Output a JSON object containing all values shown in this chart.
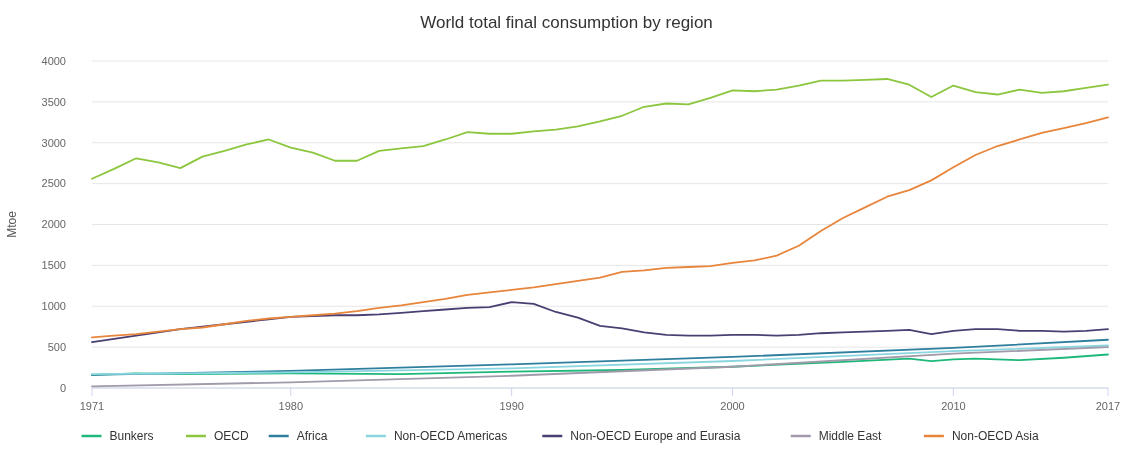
{
  "chart_data": {
    "type": "line",
    "title": "World total final consumption by region",
    "ylabel": "Mtoe",
    "xlim": [
      1971,
      2017
    ],
    "xticks": [
      1971,
      1980,
      1990,
      2000,
      2010,
      2017
    ],
    "ylim": [
      0,
      4000
    ],
    "yticks": [
      0,
      500,
      1000,
      1500,
      2000,
      2500,
      3000,
      3500,
      4000
    ],
    "grid": "y",
    "legend": "bottom",
    "marker": "none",
    "line_style": "solid",
    "series": [
      {
        "name": "Bunkers",
        "color": "#1db87a",
        "x": [
          1971,
          1973,
          1975,
          1980,
          1985,
          1990,
          1995,
          2000,
          2005,
          2008,
          2009,
          2010,
          2011,
          2013,
          2015,
          2017
        ],
        "values": [
          160,
          180,
          170,
          180,
          170,
          200,
          220,
          260,
          320,
          360,
          330,
          350,
          360,
          340,
          370,
          410
        ]
      },
      {
        "name": "OECD",
        "color": "#8cc63e",
        "x": [
          1971,
          1972,
          1973,
          1974,
          1975,
          1976,
          1977,
          1978,
          1979,
          1980,
          1981,
          1982,
          1983,
          1984,
          1985,
          1986,
          1987,
          1988,
          1989,
          1990,
          1991,
          1992,
          1993,
          1994,
          1995,
          1996,
          1997,
          1998,
          1999,
          2000,
          2001,
          2002,
          2003,
          2004,
          2005,
          2006,
          2007,
          2008,
          2009,
          2010,
          2011,
          2012,
          2013,
          2014,
          2015,
          2016,
          2017
        ],
        "values": [
          2560,
          2680,
          2810,
          2760,
          2690,
          2830,
          2900,
          2980,
          3040,
          2940,
          2880,
          2780,
          2780,
          2900,
          2930,
          2960,
          3040,
          3130,
          3110,
          3110,
          3140,
          3160,
          3200,
          3260,
          3330,
          3440,
          3480,
          3470,
          3550,
          3640,
          3630,
          3650,
          3700,
          3760,
          3760,
          3770,
          3780,
          3710,
          3560,
          3700,
          3620,
          3590,
          3650,
          3610,
          3630,
          3670,
          3710
        ]
      },
      {
        "name": "Africa",
        "color": "#2e7f9e",
        "x": [
          1971,
          1980,
          1990,
          2000,
          2010,
          2017
        ],
        "values": [
          160,
          210,
          290,
          380,
          490,
          590
        ]
      },
      {
        "name": "Non-OECD Americas",
        "color": "#8ad6e0",
        "x": [
          1971,
          1980,
          1990,
          2000,
          2010,
          2017
        ],
        "values": [
          170,
          190,
          240,
          330,
          450,
          520
        ]
      },
      {
        "name": "Non-OECD Europe and Eurasia",
        "color": "#4b3f72",
        "x": [
          1971,
          1972,
          1973,
          1974,
          1975,
          1976,
          1977,
          1978,
          1979,
          1980,
          1981,
          1982,
          1983,
          1984,
          1985,
          1986,
          1987,
          1988,
          1989,
          1990,
          1991,
          1992,
          1993,
          1994,
          1995,
          1996,
          1997,
          1998,
          1999,
          2000,
          2001,
          2002,
          2003,
          2004,
          2005,
          2006,
          2007,
          2008,
          2009,
          2010,
          2011,
          2012,
          2013,
          2014,
          2015,
          2016,
          2017
        ],
        "values": [
          560,
          600,
          640,
          680,
          720,
          750,
          780,
          810,
          840,
          870,
          880,
          890,
          890,
          900,
          920,
          940,
          960,
          980,
          990,
          1050,
          1030,
          930,
          860,
          760,
          730,
          680,
          650,
          640,
          640,
          650,
          650,
          640,
          650,
          670,
          680,
          690,
          700,
          710,
          660,
          700,
          720,
          720,
          700,
          700,
          690,
          700,
          720
        ]
      },
      {
        "name": "Middle East",
        "color": "#a09aaa",
        "x": [
          1971,
          1980,
          1990,
          2000,
          2010,
          2017
        ],
        "values": [
          20,
          70,
          150,
          260,
          420,
          500
        ]
      },
      {
        "name": "Non-OECD Asia",
        "color": "#e8853c",
        "x": [
          1971,
          1972,
          1973,
          1974,
          1975,
          1976,
          1977,
          1978,
          1979,
          1980,
          1981,
          1982,
          1983,
          1984,
          1985,
          1986,
          1987,
          1988,
          1989,
          1990,
          1991,
          1992,
          1993,
          1994,
          1995,
          1996,
          1997,
          1998,
          1999,
          2000,
          2001,
          2002,
          2003,
          2004,
          2005,
          2006,
          2007,
          2008,
          2009,
          2010,
          2011,
          2012,
          2013,
          2014,
          2015,
          2016,
          2017
        ],
        "values": [
          620,
          640,
          660,
          690,
          720,
          740,
          780,
          820,
          850,
          870,
          890,
          910,
          940,
          980,
          1010,
          1050,
          1090,
          1140,
          1170,
          1200,
          1230,
          1270,
          1310,
          1350,
          1420,
          1440,
          1470,
          1480,
          1490,
          1530,
          1560,
          1620,
          1740,
          1920,
          2080,
          2210,
          2340,
          2420,
          2540,
          2700,
          2850,
          2960,
          3040,
          3120,
          3180,
          3240,
          3310
        ]
      }
    ]
  }
}
